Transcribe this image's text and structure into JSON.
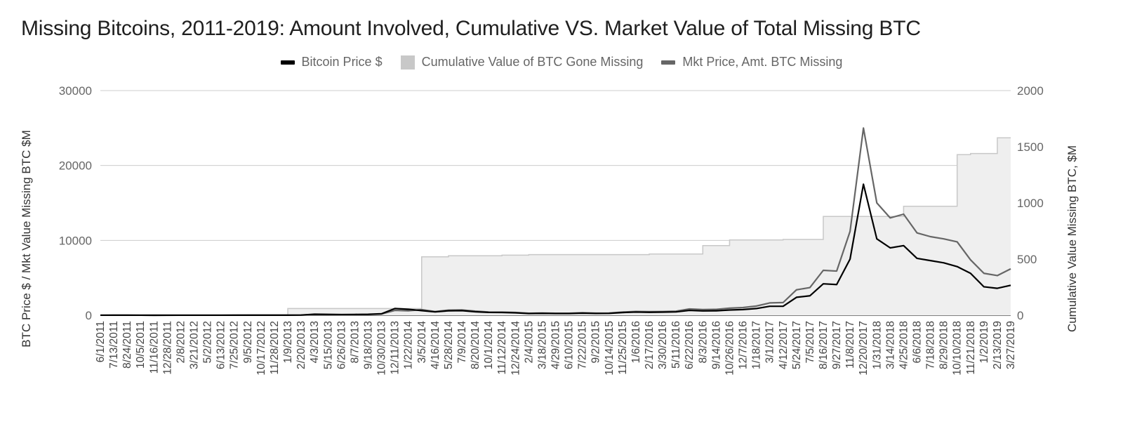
{
  "chart_data": {
    "type": "line",
    "title": "Missing Bitcoins, 2011-2019: Amount Involved, Cumulative VS. Market Value of Total Missing BTC",
    "ylabel_left": "BTC Price $ / Mkt Value  Missing BTC $M",
    "ylabel_right": "Cumulative Value Missing BTC, $M",
    "ylim_left": [
      0,
      30000
    ],
    "ylim_right": [
      0,
      2000
    ],
    "yticks_left": [
      "30000",
      "20000",
      "10000",
      "0"
    ],
    "yticks_right": [
      "2000",
      "1500",
      "1000",
      "500",
      "0"
    ],
    "legend_position": "top",
    "categories": [
      "6/1/2011",
      "7/13/2011",
      "8/24/2011",
      "10/5/2011",
      "11/16/2011",
      "12/28/2011",
      "2/8/2012",
      "3/21/2012",
      "5/2/2012",
      "6/13/2012",
      "7/25/2012",
      "9/5/2012",
      "10/17/2012",
      "11/28/2012",
      "1/9/2013",
      "2/20/2013",
      "4/3/2013",
      "5/15/2013",
      "6/26/2013",
      "8/7/2013",
      "9/18/2013",
      "10/30/2013",
      "12/11/2013",
      "1/22/2014",
      "3/5/2014",
      "4/16/2014",
      "5/28/2014",
      "7/9/2014",
      "8/20/2014",
      "10/1/2014",
      "11/12/2014",
      "12/24/2014",
      "2/4/2015",
      "3/18/2015",
      "4/29/2015",
      "6/10/2015",
      "7/22/2015",
      "9/2/2015",
      "10/14/2015",
      "11/25/2015",
      "1/6/2016",
      "2/17/2016",
      "3/30/2016",
      "5/11/2016",
      "6/22/2016",
      "8/3/2016",
      "9/14/2016",
      "10/26/2016",
      "12/7/2016",
      "1/18/2017",
      "3/1/2017",
      "4/12/2017",
      "5/24/2017",
      "7/5/2017",
      "8/16/2017",
      "9/27/2017",
      "11/8/2017",
      "12/20/2017",
      "1/31/2018",
      "3/14/2018",
      "4/25/2018",
      "6/6/2018",
      "7/18/2018",
      "8/29/2018",
      "10/10/2018",
      "11/21/2018",
      "1/2/2019",
      "2/13/2019",
      "3/27/2019"
    ],
    "series": [
      {
        "name": "Bitcoin Price $",
        "axis": "left",
        "color": "#000000",
        "values": [
          8,
          14,
          10,
          5,
          3,
          4,
          5,
          5,
          5,
          6,
          9,
          11,
          12,
          12,
          14,
          28,
          140,
          120,
          100,
          110,
          130,
          200,
          900,
          800,
          620,
          450,
          600,
          620,
          470,
          380,
          370,
          320,
          230,
          260,
          230,
          230,
          280,
          240,
          250,
          360,
          430,
          400,
          420,
          450,
          650,
          580,
          600,
          700,
          760,
          900,
          1200,
          1200,
          2400,
          2600,
          4200,
          4100,
          7500,
          17500,
          10200,
          9000,
          9300,
          7600,
          7300,
          7000,
          6500,
          5600,
          3800,
          3600,
          4000
        ]
      },
      {
        "name": "Cumulative Value of BTC Gone Missing",
        "axis": "right",
        "color": "#c8c8c8",
        "values": [
          3,
          3,
          3,
          3,
          3,
          3,
          3,
          3,
          3,
          3,
          3,
          3,
          3,
          3,
          60,
          60,
          60,
          60,
          60,
          60,
          60,
          60,
          60,
          60,
          520,
          520,
          530,
          530,
          530,
          530,
          535,
          535,
          540,
          540,
          540,
          540,
          540,
          540,
          540,
          540,
          540,
          545,
          545,
          545,
          545,
          620,
          620,
          670,
          670,
          670,
          670,
          675,
          675,
          675,
          880,
          880,
          880,
          880,
          880,
          880,
          970,
          970,
          970,
          970,
          1430,
          1440,
          1440,
          1580,
          1580
        ]
      },
      {
        "name": "Mkt Price, Amt. BTC Missing",
        "axis": "left",
        "color": "#666666",
        "values": [
          5,
          8,
          6,
          4,
          3,
          3,
          4,
          4,
          4,
          5,
          7,
          9,
          10,
          10,
          12,
          25,
          100,
          90,
          80,
          90,
          100,
          170,
          650,
          600,
          750,
          500,
          680,
          700,
          550,
          440,
          430,
          380,
          270,
          300,
          270,
          270,
          330,
          280,
          300,
          430,
          510,
          480,
          500,
          540,
          850,
          760,
          790,
          950,
          1030,
          1230,
          1650,
          1700,
          3400,
          3700,
          6000,
          5900,
          11200,
          25000,
          15000,
          13000,
          13500,
          11000,
          10500,
          10200,
          9800,
          7400,
          5600,
          5300,
          6200
        ]
      }
    ]
  }
}
